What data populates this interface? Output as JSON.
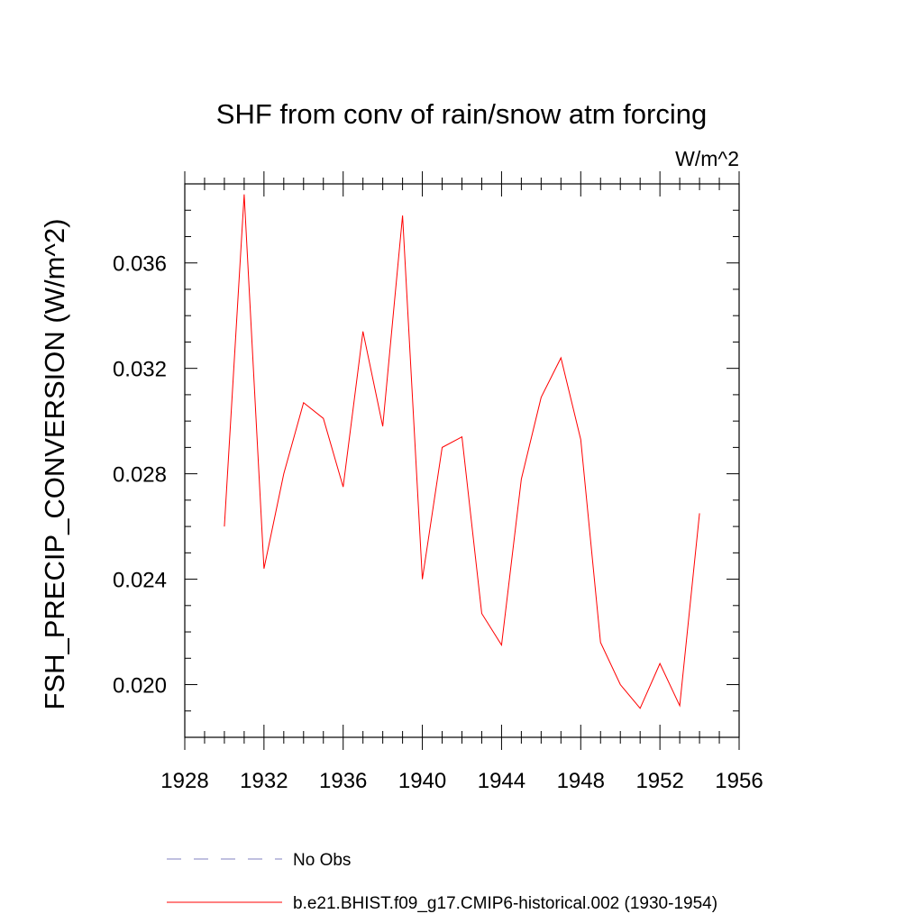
{
  "chart_data": {
    "type": "line",
    "title": "SHF from conv of rain/snow atm forcing",
    "units_label": "W/m^2",
    "xlabel": "",
    "ylabel": "FSH_PRECIP_CONVERSION  (W/m^2)",
    "xlim": [
      1928,
      1956
    ],
    "ylim": [
      0.018,
      0.039
    ],
    "x_ticks": [
      1928,
      1932,
      1936,
      1940,
      1944,
      1948,
      1952,
      1956
    ],
    "x_tick_labels": [
      "1928",
      "1932",
      "1936",
      "1940",
      "1944",
      "1948",
      "1952",
      "1956"
    ],
    "y_ticks": [
      0.02,
      0.024,
      0.028,
      0.032,
      0.036
    ],
    "y_tick_labels": [
      "0.020",
      "0.024",
      "0.028",
      "0.032",
      "0.036"
    ],
    "grid": false,
    "series": [
      {
        "name": "b.e21.BHIST.f09_g17.CMIP6-historical.002 (1930-1954)",
        "color": "#ff0000",
        "x": [
          1930,
          1931,
          1932,
          1933,
          1934,
          1935,
          1936,
          1937,
          1938,
          1939,
          1940,
          1941,
          1942,
          1943,
          1944,
          1945,
          1946,
          1947,
          1948,
          1949,
          1950,
          1951,
          1952,
          1953,
          1954
        ],
        "values": [
          0.026,
          0.0386,
          0.0244,
          0.028,
          0.0307,
          0.0301,
          0.0275,
          0.0334,
          0.0298,
          0.0378,
          0.024,
          0.029,
          0.0294,
          0.0227,
          0.0215,
          0.0278,
          0.0309,
          0.0324,
          0.0293,
          0.0216,
          0.02,
          0.0191,
          0.0208,
          0.0192,
          0.0265
        ]
      }
    ],
    "legend": {
      "placement": "bottom",
      "entries": [
        {
          "label": "No Obs",
          "color": "#8080c0",
          "style": "dashed"
        },
        {
          "label": "b.e21.BHIST.f09_g17.CMIP6-historical.002 (1930-1954)",
          "color": "#ff0000",
          "style": "solid"
        }
      ]
    }
  }
}
